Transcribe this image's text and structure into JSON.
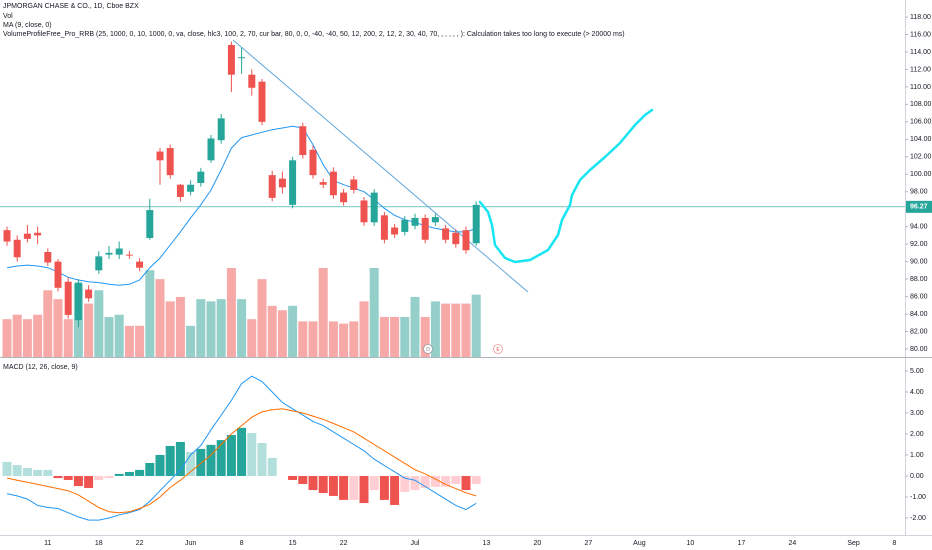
{
  "chart_data": {
    "type": "candlestick",
    "title": "JPMORGAN CHASE & CO., 1D, Cboe BZX",
    "categories": [
      null,
      null,
      null,
      null,
      "11",
      null,
      null,
      null,
      null,
      "18",
      null,
      null,
      null,
      "22",
      null,
      null,
      null,
      null,
      "Jun",
      null,
      null,
      null,
      null,
      "8",
      null,
      null,
      null,
      null,
      "15",
      null,
      null,
      null,
      null,
      "22",
      null,
      null,
      null,
      null,
      null,
      null,
      "Jul",
      null,
      null,
      null,
      null,
      null,
      null,
      "13",
      null,
      null,
      null,
      null,
      "20",
      null,
      null,
      null,
      null,
      "27",
      null,
      null,
      null,
      null,
      "Aug",
      null,
      null,
      null,
      null,
      "10",
      null,
      null,
      null,
      null,
      "17",
      null,
      null,
      null,
      null,
      "24",
      null,
      null,
      null,
      null,
      null,
      "Sep",
      null,
      null,
      null,
      "8",
      null
    ],
    "open": [
      93.6,
      92.5,
      93.2,
      93.3,
      91.1,
      90.0,
      87.7,
      83.3,
      86.8,
      89.0,
      90.8,
      90.8,
      90.8,
      90.0,
      92.7,
      102.6,
      103.0,
      98.8,
      98.0,
      99.0,
      101.6,
      103.9,
      114.8,
      113.3,
      111.4,
      110.6,
      99.9,
      99.5,
      96.5,
      105.5,
      102.8,
      99.1,
      100.3,
      97.9,
      99.4,
      97.0,
      94.5,
      95.3,
      93.9,
      93.4,
      94.1,
      95.0,
      94.5,
      93.8,
      93.3,
      93.6,
      92.1,
      null,
      null,
      null,
      null,
      null,
      null,
      null,
      null,
      null,
      null,
      null,
      null,
      null,
      null,
      null,
      null,
      null,
      null,
      null,
      null,
      null,
      null,
      null,
      null,
      null,
      null,
      null,
      null,
      null,
      null,
      null,
      null,
      null,
      null,
      null,
      null,
      null,
      null,
      null,
      null,
      null,
      null
    ],
    "high": [
      94.0,
      93.0,
      94.2,
      94.0,
      91.5,
      90.3,
      88.2,
      88.0,
      87.3,
      91.2,
      91.8,
      92.3,
      91.2,
      90.4,
      97.2,
      103.0,
      103.4,
      98.9,
      99.3,
      100.7,
      104.5,
      106.9,
      115.2,
      114.5,
      112.0,
      110.9,
      100.4,
      100.3,
      102.0,
      105.9,
      103.3,
      99.5,
      100.8,
      98.3,
      99.8,
      97.4,
      98.3,
      95.7,
      94.3,
      95.2,
      95.5,
      95.4,
      95.5,
      94.2,
      93.7,
      94.0,
      96.9,
      null,
      null,
      null,
      null,
      null,
      null,
      null,
      null,
      null,
      null,
      null,
      null,
      null,
      null,
      null,
      null,
      null,
      null,
      null,
      null,
      null,
      null,
      null,
      null,
      null,
      null,
      null,
      null,
      null,
      null,
      null,
      null,
      null,
      null,
      null,
      null,
      null,
      null,
      null,
      null,
      null,
      null
    ],
    "low": [
      91.8,
      90.0,
      92.2,
      92.0,
      89.5,
      86.6,
      83.5,
      82.5,
      85.4,
      88.6,
      90.3,
      90.3,
      90.3,
      88.9,
      92.5,
      98.8,
      99.5,
      96.9,
      97.6,
      98.6,
      101.3,
      103.5,
      109.4,
      111.5,
      109.0,
      105.6,
      96.9,
      97.8,
      96.1,
      101.8,
      99.5,
      98.4,
      97.2,
      96.4,
      97.8,
      94.1,
      94.1,
      92.1,
      92.7,
      93.0,
      93.7,
      92.1,
      94.1,
      92.1,
      91.6,
      90.9,
      91.8,
      null,
      null,
      null,
      null,
      null,
      null,
      null,
      null,
      null,
      null,
      null,
      null,
      null,
      null,
      null,
      null,
      null,
      null,
      null,
      null,
      null,
      null,
      null,
      null,
      null,
      null,
      null,
      null,
      null,
      null,
      null,
      null,
      null,
      null,
      null,
      null,
      null,
      null,
      null,
      null,
      null,
      null
    ],
    "close": [
      92.3,
      90.5,
      92.6,
      93.0,
      89.9,
      87.0,
      83.9,
      87.6,
      85.8,
      90.6,
      91.0,
      91.5,
      90.7,
      89.3,
      95.9,
      101.6,
      99.9,
      97.4,
      98.8,
      100.3,
      104.1,
      106.4,
      111.4,
      113.4,
      109.9,
      106.0,
      97.3,
      98.5,
      101.6,
      102.2,
      99.9,
      98.8,
      97.6,
      96.8,
      98.2,
      94.5,
      97.9,
      92.5,
      93.1,
      94.8,
      95.0,
      92.5,
      95.1,
      92.5,
      92.0,
      91.3,
      96.5,
      null,
      null,
      null,
      null,
      null,
      null,
      null,
      null,
      null,
      null,
      null,
      null,
      null,
      null,
      null,
      null,
      null,
      null,
      null,
      null,
      null,
      null,
      null,
      null,
      null,
      null,
      null,
      null,
      null,
      null,
      null,
      null,
      null,
      null,
      null,
      null,
      null,
      null,
      null,
      null,
      null,
      null
    ],
    "up_color": "#26a69a",
    "down_color": "#ef5350",
    "ylim": [
      79.08,
      119.95
    ],
    "yticks": [
      {
        "value": 80,
        "label": "80.00"
      },
      {
        "value": 82,
        "label": "82.00"
      },
      {
        "value": 84,
        "label": "84.00"
      },
      {
        "value": 86,
        "label": "86.00"
      },
      {
        "value": 88,
        "label": "88.00"
      },
      {
        "value": 90,
        "label": "90.00"
      },
      {
        "value": 92,
        "label": "92.00"
      },
      {
        "value": 94,
        "label": "94.00"
      },
      {
        "value": 96,
        "label": "96.00"
      },
      {
        "value": 98,
        "label": "98.00"
      },
      {
        "value": 100,
        "label": "100.00"
      },
      {
        "value": 102,
        "label": "102.00"
      },
      {
        "value": 104,
        "label": "104.00"
      },
      {
        "value": 106,
        "label": "106.00"
      },
      {
        "value": 108,
        "label": "108.00"
      },
      {
        "value": 110,
        "label": "110.00"
      },
      {
        "value": 112,
        "label": "112.00"
      },
      {
        "value": 114,
        "label": "114.00"
      },
      {
        "value": 116,
        "label": "116.00"
      },
      {
        "value": 118,
        "label": "118.00"
      }
    ],
    "last_price": 96.27,
    "series": [
      {
        "name": "Vol",
        "type": "volume",
        "up_color": "#94cfc9",
        "down_color": "#f6a9a7",
        "values": [
          17,
          19,
          17,
          19,
          30,
          26,
          17,
          33,
          24,
          30,
          18,
          19,
          14,
          14,
          39,
          35,
          25,
          27,
          14,
          26,
          25,
          26,
          40,
          26,
          17,
          35,
          23,
          21,
          23,
          16,
          16,
          40,
          16,
          15,
          16,
          25,
          40,
          18,
          18,
          18,
          27,
          18,
          25,
          24,
          24,
          24,
          28,
          null,
          null,
          null,
          null,
          null,
          null,
          null,
          null,
          null,
          null,
          null,
          null,
          null,
          null,
          null,
          null,
          null,
          null,
          null,
          null,
          null,
          null,
          null,
          null,
          null,
          null,
          null,
          null,
          null,
          null,
          null,
          null,
          null,
          null,
          null,
          null,
          null,
          null,
          null,
          null,
          null,
          null
        ]
      },
      {
        "name": "MA (9, close, 0)",
        "type": "line",
        "color": "#2196f3",
        "values": [
          89.3,
          89.5,
          89.6,
          89.5,
          89.3,
          88.8,
          88.2,
          87.9,
          87.7,
          87.6,
          87.4,
          87.3,
          87.4,
          87.9,
          89.3,
          90.4,
          91.9,
          93.4,
          95.0,
          96.5,
          98.2,
          100.5,
          103.0,
          104.2,
          104.5,
          104.8,
          105.1,
          105.3,
          105.5,
          105.3,
          103.4,
          101.1,
          99.3,
          98.8,
          98.4,
          98.0,
          97.1,
          96.1,
          95.3,
          94.8,
          94.5,
          94.1,
          93.8,
          93.6,
          93.4,
          93.4,
          93.8,
          null,
          null,
          null,
          null,
          null,
          null,
          null,
          null,
          null,
          null,
          null,
          null,
          null,
          null,
          null,
          null,
          null,
          null,
          null,
          null,
          null,
          null,
          null,
          null,
          null,
          null,
          null,
          null,
          null,
          null,
          null,
          null,
          null,
          null,
          null,
          null,
          null,
          null,
          null,
          null,
          null,
          null
        ]
      }
    ],
    "study_note": "VolumeProfileFree_Pro_RRB (25, 1000, 0, 10, 1000, 0, va, close, hlc3, 100, 2, 70, cur bar, 80, 0, 0, -40, -40, 50, 12, 200, 2, 12, 2, 30, 40, 70, , , , , , ): Calculation takes too long to execute (> 20000 ms)",
    "events": [
      "D",
      "E"
    ],
    "macd": {
      "title": "MACD (12, 26, close, 9)",
      "ylim": [
        -2.81,
        5.57
      ],
      "yticks": [
        {
          "value": -2,
          "label": "-2.00"
        },
        {
          "value": -1,
          "label": "-1.00"
        },
        {
          "value": 0,
          "label": "0.00"
        },
        {
          "value": 1,
          "label": "1.00"
        },
        {
          "value": 2,
          "label": "2.00"
        },
        {
          "value": 3,
          "label": "3.00"
        },
        {
          "value": 4,
          "label": "4.00"
        },
        {
          "value": 5,
          "label": "5.00"
        }
      ],
      "histogram_colors": {
        "up_rising": "#26a69a",
        "up_falling": "#b2dfdb",
        "down_falling": "#ef5350",
        "down_rising": "#ffcdd2"
      },
      "histogram": [
        0.67,
        0.52,
        0.38,
        0.29,
        0.29,
        -0.1,
        -0.19,
        -0.48,
        -0.57,
        -0.19,
        -0.1,
        0.1,
        0.19,
        0.29,
        0.62,
        1.0,
        1.43,
        1.62,
        1.14,
        1.29,
        1.48,
        1.71,
        1.95,
        2.29,
        2.05,
        1.57,
        0.86,
        0,
        -0.19,
        -0.38,
        -0.67,
        -0.81,
        -0.95,
        -1.14,
        -1.14,
        -1.29,
        -0.67,
        -1.14,
        -1.38,
        -0.76,
        -0.67,
        -0.57,
        -0.52,
        -0.52,
        -0.38,
        -0.67,
        -0.38,
        null,
        null,
        null,
        null,
        null,
        null,
        null,
        null,
        null,
        null,
        null,
        null,
        null,
        null,
        null,
        null,
        null,
        null,
        null,
        null,
        null,
        null,
        null,
        null,
        null,
        null,
        null,
        null,
        null,
        null,
        null,
        null,
        null,
        null,
        null,
        null,
        null,
        null,
        null,
        null,
        null,
        null
      ],
      "lines": [
        {
          "color": "#2196f3",
          "values": [
            -0.85,
            -0.95,
            -1.1,
            -1.4,
            -1.5,
            -1.55,
            -1.75,
            -1.95,
            -2.1,
            -2.1,
            -2.0,
            -1.85,
            -1.75,
            -1.6,
            -1.2,
            -0.7,
            -0.2,
            0.3,
            1.0,
            1.45,
            2.2,
            2.9,
            3.6,
            4.4,
            4.75,
            4.5,
            4.0,
            3.5,
            3.2,
            2.9,
            2.6,
            2.4,
            2.1,
            1.8,
            1.5,
            1.2,
            0.8,
            0.5,
            0.2,
            -0.1,
            -0.2,
            -0.5,
            -0.8,
            -1.1,
            -1.4,
            -1.6,
            -1.3,
            null,
            null,
            null,
            null,
            null,
            null,
            null,
            null,
            null,
            null,
            null,
            null,
            null,
            null,
            null,
            null,
            null,
            null,
            null,
            null,
            null,
            null,
            null,
            null,
            null,
            null,
            null,
            null,
            null,
            null,
            null,
            null,
            null,
            null,
            null,
            null,
            null,
            null,
            null,
            null,
            null,
            null
          ]
        },
        {
          "color": "#ff6d00",
          "values": [
            -0.1,
            -0.2,
            -0.3,
            -0.4,
            -0.5,
            -0.6,
            -0.7,
            -0.9,
            -1.2,
            -1.5,
            -1.7,
            -1.75,
            -1.7,
            -1.55,
            -1.35,
            -1.0,
            -0.55,
            -0.2,
            0.2,
            0.6,
            1.0,
            1.5,
            2.0,
            2.4,
            2.8,
            3.05,
            3.15,
            3.2,
            3.1,
            3.0,
            2.85,
            2.7,
            2.5,
            2.3,
            2.1,
            1.8,
            1.5,
            1.2,
            0.9,
            0.6,
            0.3,
            0.1,
            -0.15,
            -0.4,
            -0.6,
            -0.8,
            -0.95,
            null,
            null,
            null,
            null,
            null,
            null,
            null,
            null,
            null,
            null,
            null,
            null,
            null,
            null,
            null,
            null,
            null,
            null,
            null,
            null,
            null,
            null,
            null,
            null,
            null,
            null,
            null,
            null,
            null,
            null,
            null,
            null,
            null,
            null,
            null,
            null,
            null,
            null,
            null,
            null,
            null,
            null
          ]
        }
      ]
    }
  }
}
